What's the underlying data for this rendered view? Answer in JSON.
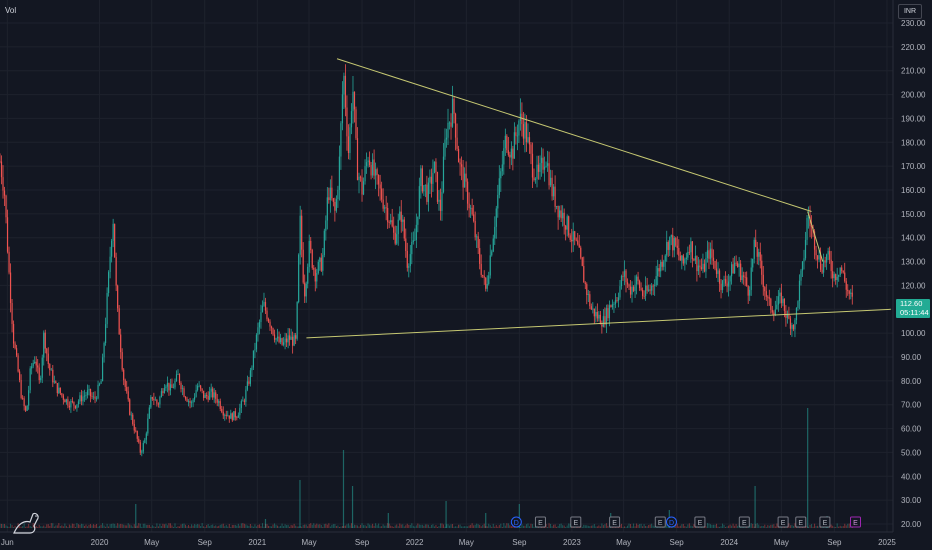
{
  "header": {
    "volume_label": "Vol",
    "currency": "INR"
  },
  "last_price": {
    "value": "112.60",
    "countdown": "05:11:44",
    "color": "#22ab94"
  },
  "colors": {
    "background": "#131722",
    "grid": "#1e222d",
    "up": "#26a69a",
    "down": "#ef5350",
    "trendline": "#c6c872",
    "axis_text": "#b2b5be"
  },
  "events": [
    "D",
    "E",
    "E",
    "E",
    "E",
    "D",
    "E",
    "E",
    "E",
    "E",
    "E",
    "E"
  ],
  "chart_data": {
    "type": "candlestick",
    "title": "",
    "xlabel": "",
    "ylabel": "",
    "ylim": [
      20,
      230
    ],
    "y_ticks": [
      230,
      220,
      210,
      200,
      190,
      180,
      170,
      160,
      150,
      140,
      130,
      120,
      110,
      100,
      90,
      80,
      70,
      60,
      50,
      40,
      30,
      20
    ],
    "y_tick_labels": [
      "230.00",
      "220.00",
      "210.00",
      "200.00",
      "190.00",
      "180.00",
      "170.00",
      "160.00",
      "150.00",
      "140.00",
      "130.00",
      "120.00",
      "110.00",
      "100.00",
      "90.00",
      "80.00",
      "70.00",
      "60.00",
      "50.00",
      "40.00",
      "30.00",
      "20.00"
    ],
    "x_range": [
      "2019-05-15",
      "2025-01-15"
    ],
    "x_ticks": [
      {
        "date": "2019-06-01",
        "label": "Jun"
      },
      {
        "date": "2020-01-01",
        "label": "2020"
      },
      {
        "date": "2020-05-01",
        "label": "May"
      },
      {
        "date": "2020-09-01",
        "label": "Sep"
      },
      {
        "date": "2021-01-01",
        "label": "2021"
      },
      {
        "date": "2021-05-01",
        "label": "May"
      },
      {
        "date": "2021-09-01",
        "label": "Sep"
      },
      {
        "date": "2022-01-01",
        "label": "2022"
      },
      {
        "date": "2022-05-01",
        "label": "May"
      },
      {
        "date": "2022-09-01",
        "label": "Sep"
      },
      {
        "date": "2023-01-01",
        "label": "2023"
      },
      {
        "date": "2023-05-01",
        "label": "May"
      },
      {
        "date": "2023-09-01",
        "label": "Sep"
      },
      {
        "date": "2024-01-01",
        "label": "2024"
      },
      {
        "date": "2024-05-01",
        "label": "May"
      },
      {
        "date": "2024-09-01",
        "label": "Sep"
      },
      {
        "date": "2025-01-01",
        "label": "2025"
      }
    ],
    "price_path": [
      [
        "2019-05-15",
        172
      ],
      [
        "2019-05-25",
        160
      ],
      [
        "2019-06-05",
        125
      ],
      [
        "2019-06-15",
        98
      ],
      [
        "2019-06-25",
        85
      ],
      [
        "2019-07-05",
        72
      ],
      [
        "2019-07-15",
        66
      ],
      [
        "2019-07-25",
        85
      ],
      [
        "2019-08-05",
        90
      ],
      [
        "2019-08-15",
        78
      ],
      [
        "2019-08-25",
        100
      ],
      [
        "2019-09-05",
        86
      ],
      [
        "2019-09-20",
        78
      ],
      [
        "2019-10-05",
        74
      ],
      [
        "2019-10-20",
        71
      ],
      [
        "2019-11-05",
        70
      ],
      [
        "2019-11-20",
        73
      ],
      [
        "2019-12-05",
        75
      ],
      [
        "2019-12-20",
        72
      ],
      [
        "2020-01-05",
        80
      ],
      [
        "2020-01-20",
        118
      ],
      [
        "2020-02-01",
        150
      ],
      [
        "2020-02-10",
        112
      ],
      [
        "2020-02-25",
        82
      ],
      [
        "2020-03-10",
        68
      ],
      [
        "2020-03-25",
        58
      ],
      [
        "2020-04-05",
        50
      ],
      [
        "2020-04-15",
        55
      ],
      [
        "2020-05-01",
        74
      ],
      [
        "2020-05-15",
        70
      ],
      [
        "2020-06-01",
        80
      ],
      [
        "2020-06-15",
        76
      ],
      [
        "2020-07-01",
        82
      ],
      [
        "2020-07-15",
        75
      ],
      [
        "2020-08-01",
        70
      ],
      [
        "2020-08-15",
        78
      ],
      [
        "2020-09-01",
        73
      ],
      [
        "2020-09-15",
        75
      ],
      [
        "2020-10-01",
        72
      ],
      [
        "2020-10-15",
        67
      ],
      [
        "2020-11-01",
        65
      ],
      [
        "2020-11-15",
        66
      ],
      [
        "2020-12-01",
        72
      ],
      [
        "2020-12-15",
        82
      ],
      [
        "2021-01-01",
        100
      ],
      [
        "2021-01-15",
        112
      ],
      [
        "2021-02-01",
        104
      ],
      [
        "2021-02-15",
        97
      ],
      [
        "2021-03-01",
        95
      ],
      [
        "2021-03-15",
        98
      ],
      [
        "2021-04-01",
        96
      ],
      [
        "2021-04-10",
        148
      ],
      [
        "2021-04-20",
        116
      ],
      [
        "2021-05-01",
        136
      ],
      [
        "2021-05-15",
        125
      ],
      [
        "2021-06-01",
        130
      ],
      [
        "2021-06-15",
        160
      ],
      [
        "2021-07-01",
        150
      ],
      [
        "2021-07-10",
        170
      ],
      [
        "2021-07-20",
        210
      ],
      [
        "2021-08-01",
        175
      ],
      [
        "2021-08-10",
        205
      ],
      [
        "2021-08-20",
        170
      ],
      [
        "2021-09-01",
        160
      ],
      [
        "2021-09-15",
        175
      ],
      [
        "2021-10-01",
        165
      ],
      [
        "2021-10-15",
        158
      ],
      [
        "2021-11-01",
        150
      ],
      [
        "2021-11-15",
        140
      ],
      [
        "2021-12-01",
        150
      ],
      [
        "2021-12-15",
        130
      ],
      [
        "2022-01-01",
        138
      ],
      [
        "2022-01-15",
        165
      ],
      [
        "2022-02-01",
        158
      ],
      [
        "2022-02-15",
        170
      ],
      [
        "2022-03-01",
        150
      ],
      [
        "2022-03-15",
        185
      ],
      [
        "2022-04-01",
        195
      ],
      [
        "2022-04-15",
        170
      ],
      [
        "2022-05-01",
        160
      ],
      [
        "2022-05-15",
        148
      ],
      [
        "2022-06-01",
        130
      ],
      [
        "2022-06-15",
        118
      ],
      [
        "2022-07-01",
        140
      ],
      [
        "2022-07-15",
        160
      ],
      [
        "2022-08-01",
        182
      ],
      [
        "2022-08-15",
        175
      ],
      [
        "2022-09-01",
        190
      ],
      [
        "2022-09-15",
        185
      ],
      [
        "2022-10-01",
        170
      ],
      [
        "2022-10-15",
        165
      ],
      [
        "2022-11-01",
        175
      ],
      [
        "2022-11-15",
        160
      ],
      [
        "2022-12-01",
        152
      ],
      [
        "2022-12-15",
        148
      ],
      [
        "2023-01-01",
        140
      ],
      [
        "2023-01-15",
        135
      ],
      [
        "2023-02-01",
        120
      ],
      [
        "2023-02-15",
        110
      ],
      [
        "2023-03-01",
        107
      ],
      [
        "2023-03-15",
        105
      ],
      [
        "2023-04-01",
        112
      ],
      [
        "2023-04-15",
        115
      ],
      [
        "2023-05-01",
        125
      ],
      [
        "2023-05-15",
        118
      ],
      [
        "2023-06-01",
        122
      ],
      [
        "2023-06-15",
        116
      ],
      [
        "2023-07-01",
        118
      ],
      [
        "2023-07-15",
        124
      ],
      [
        "2023-08-01",
        132
      ],
      [
        "2023-08-15",
        140
      ],
      [
        "2023-09-01",
        135
      ],
      [
        "2023-09-15",
        128
      ],
      [
        "2023-10-01",
        138
      ],
      [
        "2023-10-15",
        130
      ],
      [
        "2023-11-01",
        126
      ],
      [
        "2023-11-15",
        134
      ],
      [
        "2023-12-01",
        128
      ],
      [
        "2023-12-15",
        120
      ],
      [
        "2024-01-01",
        123
      ],
      [
        "2024-01-15",
        130
      ],
      [
        "2024-02-01",
        124
      ],
      [
        "2024-02-15",
        118
      ],
      [
        "2024-03-01",
        138
      ],
      [
        "2024-03-15",
        126
      ],
      [
        "2024-04-01",
        112
      ],
      [
        "2024-04-15",
        110
      ],
      [
        "2024-05-01",
        115
      ],
      [
        "2024-05-15",
        106
      ],
      [
        "2024-06-01",
        103
      ],
      [
        "2024-06-10",
        118
      ],
      [
        "2024-06-20",
        128
      ],
      [
        "2024-07-01",
        150
      ],
      [
        "2024-07-15",
        140
      ],
      [
        "2024-08-01",
        128
      ],
      [
        "2024-08-15",
        132
      ],
      [
        "2024-09-01",
        124
      ],
      [
        "2024-09-15",
        128
      ],
      [
        "2024-10-01",
        118
      ],
      [
        "2024-10-15",
        112.6
      ]
    ],
    "volume_spikes": [
      [
        "2020-03-25",
        8
      ],
      [
        "2021-01-20",
        3
      ],
      [
        "2021-04-10",
        16
      ],
      [
        "2021-07-20",
        26
      ],
      [
        "2021-08-10",
        14
      ],
      [
        "2021-11-01",
        5
      ],
      [
        "2022-03-15",
        9
      ],
      [
        "2022-06-15",
        5
      ],
      [
        "2022-09-01",
        8
      ],
      [
        "2023-04-01",
        5
      ],
      [
        "2023-08-15",
        6
      ],
      [
        "2024-03-01",
        14
      ],
      [
        "2024-07-01",
        40
      ],
      [
        "2024-08-15",
        4
      ]
    ],
    "trendlines": [
      {
        "from": [
          "2021-07-05",
          215
        ],
        "to": [
          "2024-07-10",
          151
        ]
      },
      {
        "from": [
          "2021-04-25",
          98
        ],
        "to": [
          "2025-01-10",
          110
        ]
      },
      {
        "from": [
          "2024-07-01",
          151
        ],
        "to": [
          "2024-08-05",
          130
        ]
      }
    ],
    "event_dates": [
      "2022-08-25",
      "2022-10-20",
      "2023-01-10",
      "2023-04-10",
      "2023-07-25",
      "2023-08-20",
      "2023-10-25",
      "2024-02-05",
      "2024-05-05",
      "2024-06-15",
      "2024-08-10",
      "2024-10-20"
    ]
  }
}
